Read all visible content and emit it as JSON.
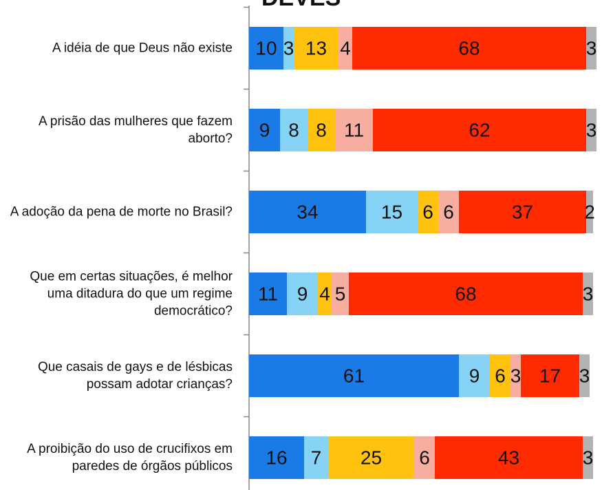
{
  "chart_data": {
    "type": "stacked-bar",
    "title": "DEVES",
    "categories": [
      "A idéia de que Deus não existe",
      "A prisão das mulheres que fazem aborto?",
      "A adoção da pena de morte no Brasil?",
      "Que em certas situações, é melhor uma ditadura do que um regime democrático?",
      "Que casais de gays e de lésbicas possam adotar crianças?",
      "A proibição do uso de crucifixos em paredes de órgãos públicos"
    ],
    "series": [
      {
        "color": "#1a7be6",
        "values": [
          10,
          9,
          34,
          11,
          61,
          16
        ]
      },
      {
        "color": "#86d3f5",
        "values": [
          3,
          8,
          15,
          9,
          9,
          7
        ]
      },
      {
        "color": "#ffc20e",
        "values": [
          13,
          8,
          6,
          4,
          6,
          25
        ]
      },
      {
        "color": "#f7aea0",
        "values": [
          4,
          11,
          6,
          5,
          3,
          6
        ]
      },
      {
        "color": "#ff2a00",
        "values": [
          68,
          62,
          37,
          68,
          17,
          43
        ]
      },
      {
        "color": "#b3b3b3",
        "values": [
          3,
          3,
          2,
          3,
          3,
          3
        ]
      }
    ]
  }
}
